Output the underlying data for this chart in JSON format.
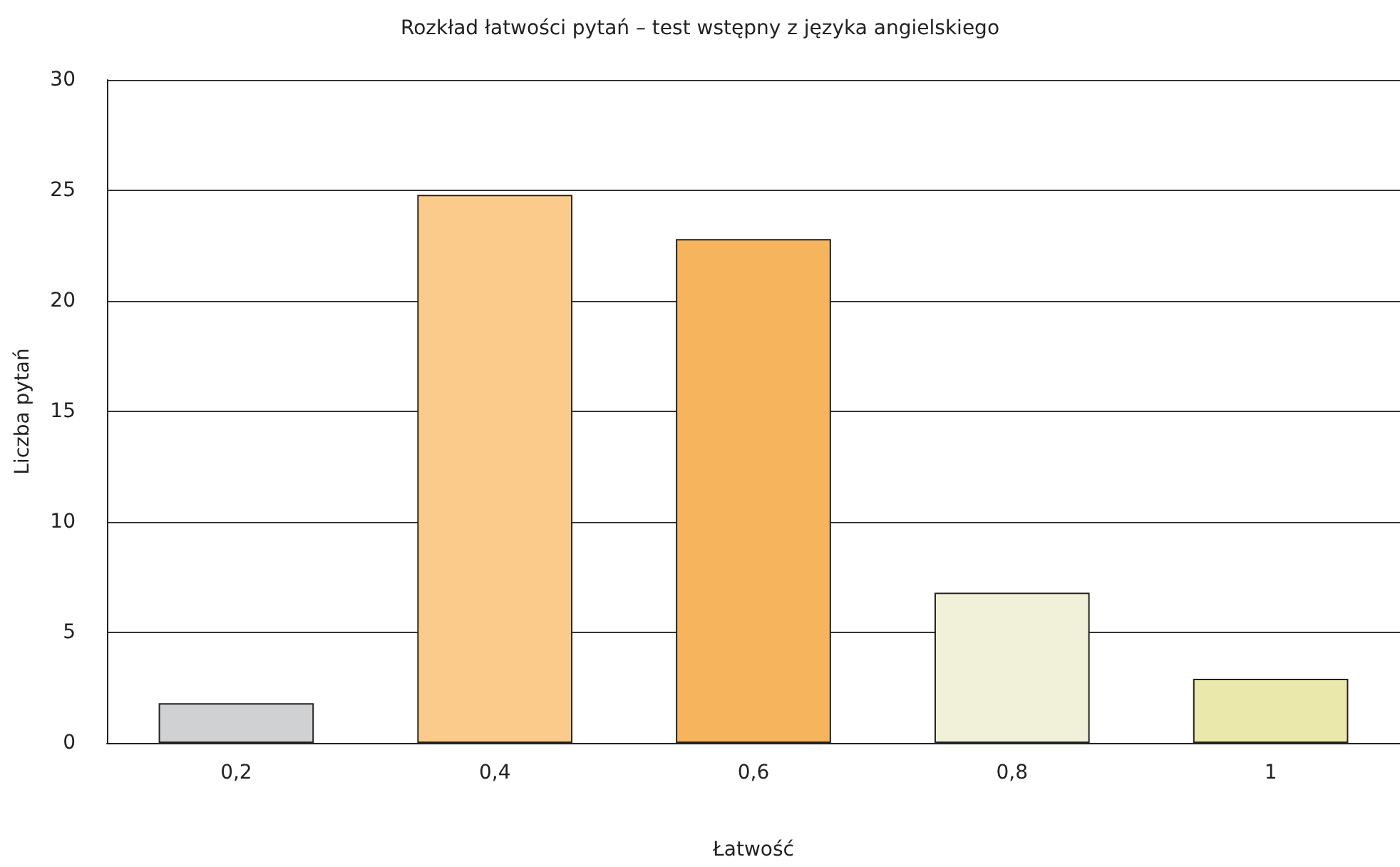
{
  "chart_data": {
    "type": "bar",
    "title": "Rozkład łatwości pytań – test wstępny z języka angielskiego",
    "xlabel": "Łatwość",
    "ylabel": "Liczba pytań",
    "categories": [
      "0,2",
      "0,4",
      "0,6",
      "0,8",
      "1"
    ],
    "values": [
      1.8,
      24.8,
      22.8,
      6.8,
      2.9
    ],
    "colors": [
      "#d0d1d3",
      "#facb8b",
      "#f6b45c",
      "#f1f0d8",
      "#ebe8ab"
    ],
    "ylim": [
      0,
      30
    ],
    "yticks": [
      0,
      5,
      10,
      15,
      20,
      25,
      30
    ],
    "grid": "y"
  }
}
